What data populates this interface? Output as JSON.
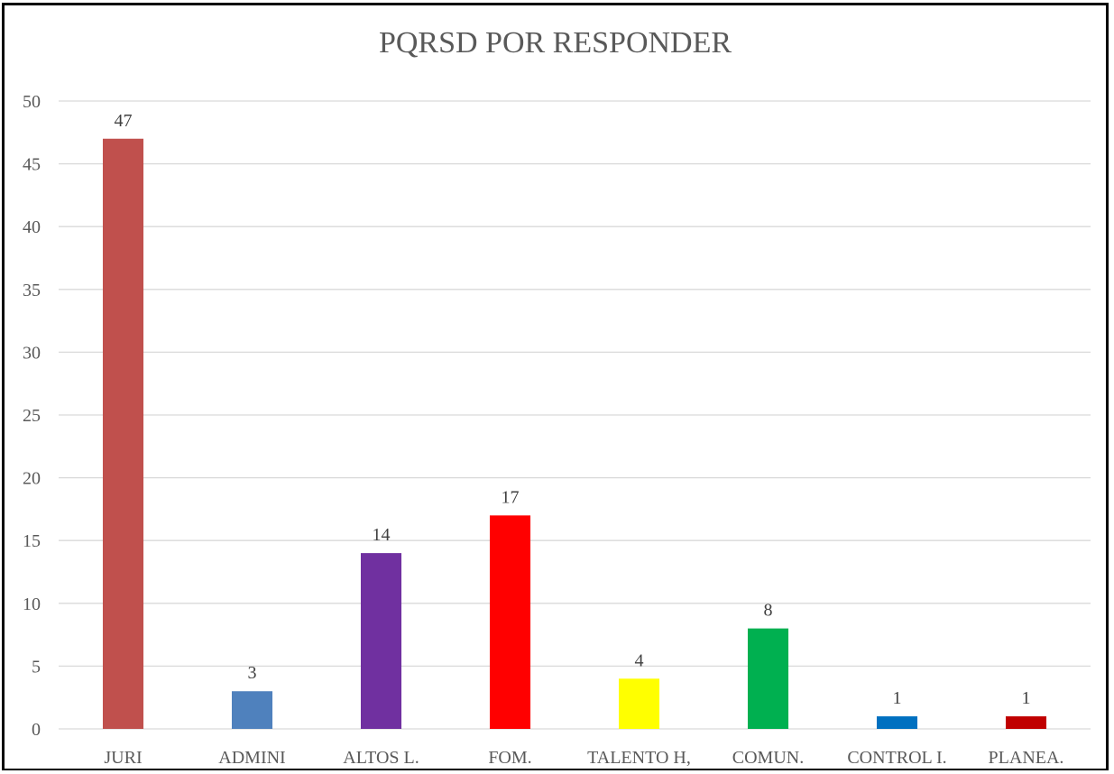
{
  "chart_data": {
    "type": "bar",
    "title": "PQRSD POR RESPONDER",
    "xlabel": "",
    "ylabel": "",
    "categories": [
      "JURI",
      "ADMINI",
      "ALTOS L.",
      "FOM.",
      "TALENTO H,",
      "COMUN.",
      "CONTROL I.",
      "PLANEA."
    ],
    "values": [
      47,
      3,
      14,
      17,
      4,
      8,
      1,
      1
    ],
    "colors": [
      "#c0504d",
      "#4f81bd",
      "#7030a0",
      "#ff0000",
      "#ffff00",
      "#00b050",
      "#0070c0",
      "#c00000"
    ],
    "ylim": [
      0,
      50
    ],
    "yticks": [
      0,
      5,
      10,
      15,
      20,
      25,
      30,
      35,
      40,
      45,
      50
    ],
    "grid": true,
    "data_labels": true,
    "legend": "none",
    "gridline_color": "#d9d9d9",
    "axis_line_color": "#d9d9d9"
  }
}
